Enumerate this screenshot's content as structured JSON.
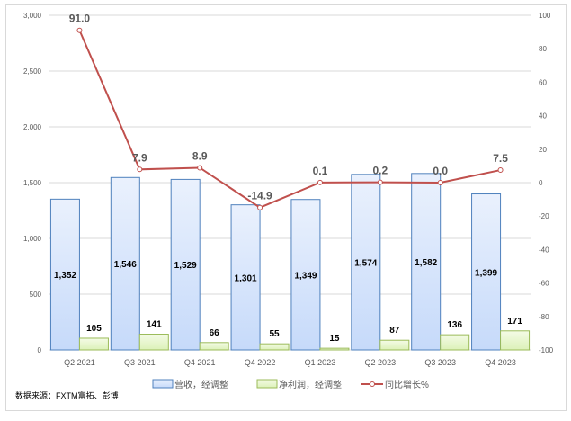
{
  "chart_data": {
    "type": "bar+line",
    "categories": [
      "Q2 2021",
      "Q3 2021",
      "Q4 2021",
      "Q4 2022",
      "Q1 2023",
      "Q2 2023",
      "Q3 2023",
      "Q4 2023"
    ],
    "series": [
      {
        "name": "营收，经调整",
        "type": "bar",
        "axis": "left",
        "color": "#dae8fc",
        "stroke": "#4f81bd",
        "values": [
          1352,
          1546,
          1529,
          1301,
          1349,
          1574,
          1582,
          1399
        ],
        "labels": [
          "1,352",
          "1,546",
          "1,529",
          "1,301",
          "1,349",
          "1,574",
          "1,582",
          "1,399"
        ]
      },
      {
        "name": "净利润，经调整",
        "type": "bar",
        "axis": "left",
        "color": "#e6f5c8",
        "stroke": "#9bbb59",
        "values": [
          105,
          141,
          66,
          55,
          15,
          87,
          136,
          171
        ],
        "labels": [
          "105",
          "141",
          "66",
          "55",
          "15",
          "87",
          "136",
          "171"
        ]
      },
      {
        "name": "同比增长%",
        "type": "line",
        "axis": "right",
        "color": "#c0504d",
        "values": [
          91.0,
          7.9,
          8.9,
          -14.9,
          0.1,
          0.2,
          0.0,
          7.5
        ],
        "labels": [
          "91.0",
          "7.9",
          "8.9",
          "-14.9",
          "0.1",
          "0.2",
          "0.0",
          "7.5"
        ]
      }
    ],
    "ylim_left": [
      0,
      3000
    ],
    "yticks_left": [
      "0",
      "500",
      "1,000",
      "1,500",
      "2,000",
      "2,500",
      "3,000"
    ],
    "ylim_right": [
      -100,
      100
    ],
    "yticks_right": [
      "-100",
      "-80",
      "-60",
      "-40",
      "-20",
      "0",
      "20",
      "40",
      "60",
      "80",
      "100"
    ],
    "grid": true,
    "legend_placement": "bottom"
  },
  "source": "数据来源：FXTM富拓、彭博"
}
